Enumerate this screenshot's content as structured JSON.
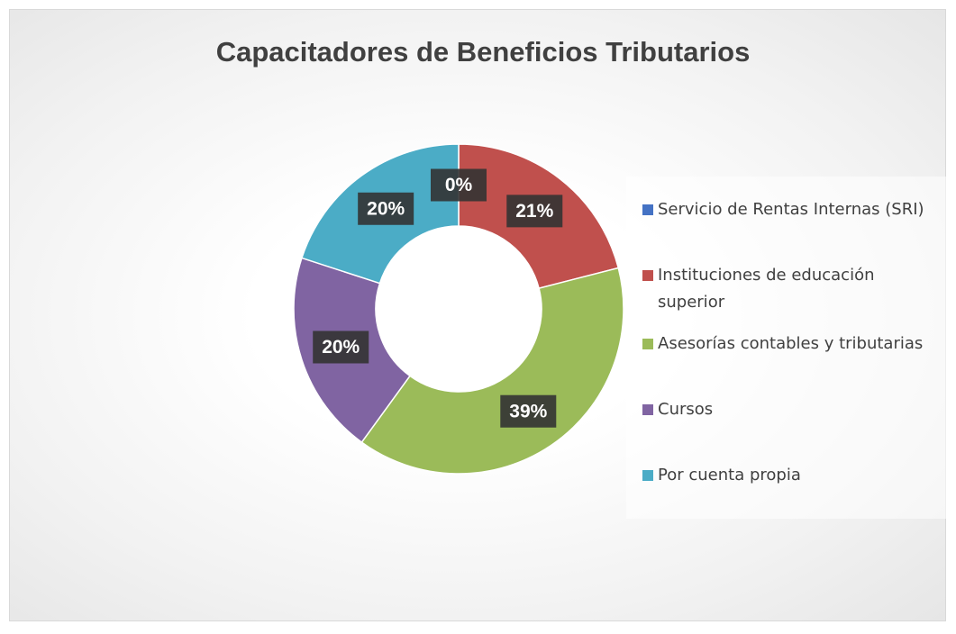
{
  "chart_data": {
    "type": "donut",
    "title": "Capacitadores de Beneficios Tributarios",
    "categories": [
      "Servicio de Rentas Internas (SRI)",
      "Instituciones de educación superior",
      "Asesorías contables y tributarias",
      "Cursos",
      "Por cuenta propia"
    ],
    "values": [
      0,
      21,
      39,
      20,
      20
    ],
    "value_labels": [
      "0%",
      "21%",
      "39%",
      "20%",
      "20%"
    ],
    "colors": [
      "#4472c4",
      "#c0504d",
      "#9bbb59",
      "#8064a2",
      "#4bacc6"
    ],
    "legend": "right"
  }
}
